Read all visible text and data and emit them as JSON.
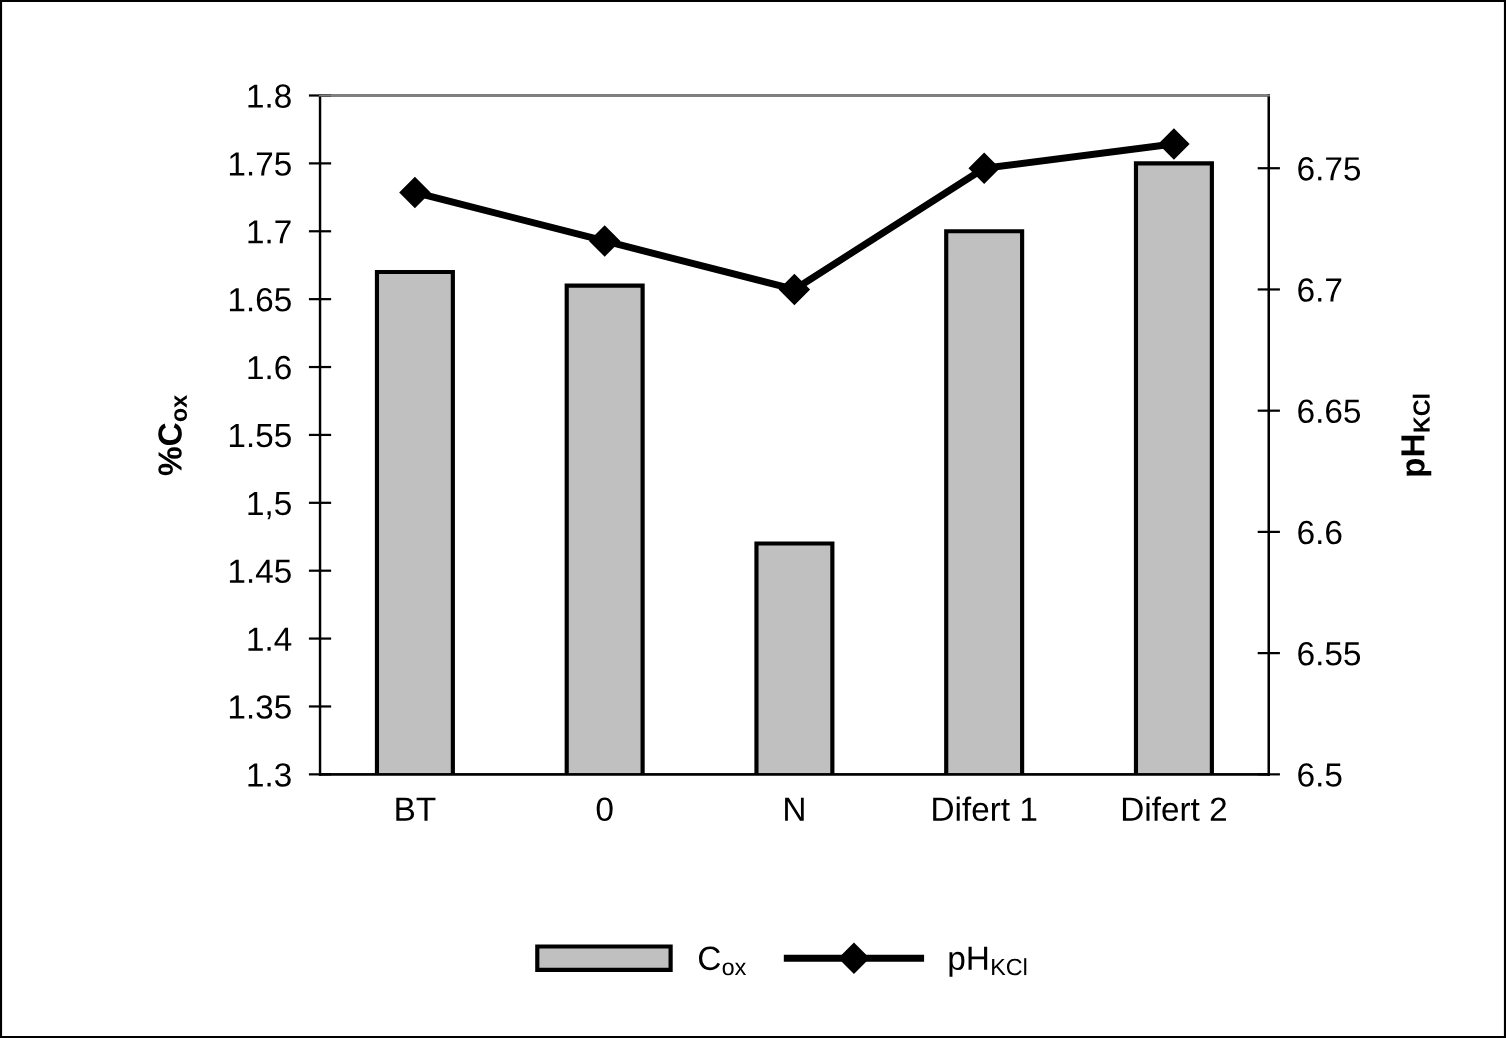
{
  "chart_data": {
    "type": "bar",
    "categories": [
      "BT",
      "0",
      "N",
      "Difert 1",
      "Difert 2"
    ],
    "ylabel": "%C$_{ox}$",
    "y2label": "pH$_{KCl}$",
    "series": [
      {
        "name": "C$_{ox}$",
        "color": "#c0c0c0",
        "values": [
          1.67,
          1.66,
          1.47,
          1.7,
          1.75
        ]
      },
      {
        "name": "pH$_{KCl}$",
        "type": "line",
        "axis": "y2",
        "color": "#000000",
        "marker": "diamond",
        "values": [
          6.74,
          6.72,
          6.7,
          6.75,
          6.76
        ]
      }
    ],
    "ylim": [
      1.3,
      1.8
    ],
    "yticks": [
      1.3,
      1.35,
      1.4,
      1.45,
      {
        "value": 1.5,
        "label": "1,5"
      },
      1.55,
      1.6,
      1.65,
      1.7,
      1.75,
      1.8
    ],
    "y2lim": [
      6.5,
      6.78
    ],
    "y2ticks": [
      6.5,
      6.55,
      6.6,
      6.65,
      6.7,
      6.75
    ],
    "legend": "bottom",
    "grid": false
  }
}
